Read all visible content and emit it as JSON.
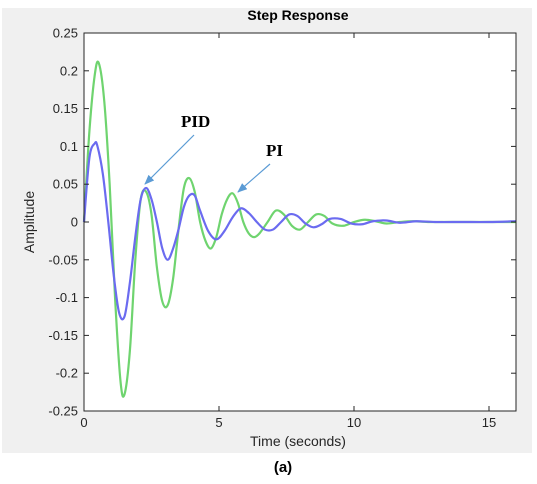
{
  "chart_data": {
    "type": "line",
    "title": "Step Response",
    "xlabel": "Time (seconds)",
    "ylabel": "Amplitude",
    "caption": "(a)",
    "xlim": [
      0,
      16
    ],
    "ylim": [
      -0.25,
      0.25
    ],
    "xticks": [
      "0",
      "5",
      "10",
      "15"
    ],
    "yticks": [
      "0.25",
      "0.2",
      "0.15",
      "0.1",
      "0.05",
      "0",
      "-0.05",
      "-0.1",
      "-0.15",
      "-0.2",
      "-0.25"
    ],
    "grid": false,
    "colors": {
      "PID": "#6b6bf0",
      "PI": "#6fd46f",
      "arrow": "#5b9bd5",
      "plot_bg": "#ffffff",
      "figure_bg": "#f0f0f0"
    },
    "annotations": [
      {
        "text": "PID",
        "target_series": "PID"
      },
      {
        "text": "PI",
        "target_series": "PI"
      }
    ],
    "series": [
      {
        "name": "PID",
        "x": [
          0,
          0.2,
          0.4,
          0.5,
          0.7,
          0.9,
          1.1,
          1.3,
          1.5,
          1.7,
          1.9,
          2.1,
          2.3,
          2.5,
          2.7,
          2.9,
          3.1,
          3.3,
          3.5,
          3.7,
          3.9,
          4.1,
          4.3,
          4.6,
          4.9,
          5.2,
          5.5,
          5.8,
          6.1,
          6.4,
          6.7,
          7.0,
          7.3,
          7.6,
          7.9,
          8.2,
          8.5,
          8.8,
          9.1,
          9.5,
          9.9,
          10.3,
          10.7,
          11.2,
          11.7,
          12.3,
          13,
          14,
          15,
          16
        ],
        "y": [
          0,
          0.085,
          0.104,
          0.1,
          0.063,
          0.0,
          -0.07,
          -0.12,
          -0.125,
          -0.08,
          -0.02,
          0.03,
          0.045,
          0.03,
          0.0,
          -0.035,
          -0.05,
          -0.035,
          -0.01,
          0.02,
          0.035,
          0.035,
          0.015,
          -0.012,
          -0.023,
          -0.012,
          0.006,
          0.018,
          0.012,
          0.0,
          -0.01,
          -0.01,
          0.0,
          0.01,
          0.008,
          -0.002,
          -0.007,
          -0.003,
          0.004,
          0.004,
          -0.002,
          -0.003,
          0.001,
          0.002,
          -0.001,
          0.001,
          0,
          0.0,
          0.0,
          0.001
        ]
      },
      {
        "name": "PI",
        "x": [
          0,
          0.2,
          0.4,
          0.55,
          0.75,
          0.95,
          1.15,
          1.35,
          1.5,
          1.7,
          1.9,
          2.1,
          2.3,
          2.5,
          2.7,
          2.9,
          3.1,
          3.3,
          3.5,
          3.7,
          3.9,
          4.1,
          4.3,
          4.5,
          4.7,
          4.9,
          5.1,
          5.3,
          5.5,
          5.7,
          5.9,
          6.1,
          6.3,
          6.5,
          6.8,
          7.1,
          7.4,
          7.7,
          8.0,
          8.3,
          8.6,
          8.9,
          9.2,
          9.6,
          10.0,
          10.4,
          10.8,
          11.2,
          11.7,
          12.2,
          12.8,
          13.5,
          14.2,
          15,
          16
        ],
        "y": [
          0,
          0.12,
          0.195,
          0.21,
          0.16,
          0.05,
          -0.1,
          -0.21,
          -0.228,
          -0.17,
          -0.05,
          0.03,
          0.04,
          0.01,
          -0.06,
          -0.105,
          -0.11,
          -0.075,
          -0.01,
          0.045,
          0.058,
          0.04,
          0.0,
          -0.025,
          -0.035,
          -0.02,
          0.01,
          0.03,
          0.038,
          0.025,
          0.0,
          -0.015,
          -0.02,
          -0.015,
          0.0,
          0.015,
          0.01,
          -0.005,
          -0.01,
          0.0,
          0.01,
          0.008,
          -0.002,
          -0.005,
          0.0,
          0.003,
          0.001,
          -0.002,
          0.0,
          0.001,
          0.0,
          0.0,
          0.0,
          0.0,
          0.0
        ]
      }
    ]
  }
}
